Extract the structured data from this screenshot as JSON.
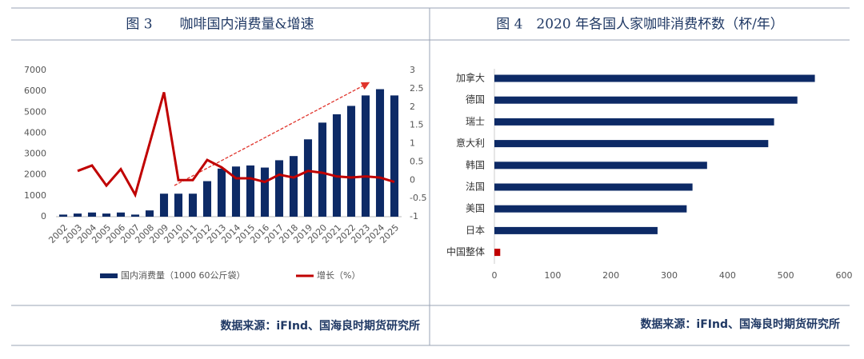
{
  "chart_data": [
    {
      "type": "bar-line",
      "title": "图 3　　咖啡国内消费量&增速",
      "source": "数据来源：iFInd、国海良时期货研究所",
      "categories": [
        "2002",
        "2003",
        "2004",
        "2005",
        "2006",
        "2007",
        "2008",
        "2009",
        "2010",
        "2011",
        "2012",
        "2013",
        "2014",
        "2015",
        "2016",
        "2017",
        "2018",
        "2019",
        "2020",
        "2021",
        "2022",
        "2023",
        "2024",
        "2025"
      ],
      "series": [
        {
          "name": "国内消费量（1000 60公斤袋）",
          "type": "bar",
          "color": "#0d2a66",
          "values": [
            100,
            150,
            200,
            150,
            200,
            100,
            300,
            1100,
            1100,
            1100,
            1700,
            2300,
            2400,
            2450,
            2350,
            2700,
            2900,
            3700,
            4500,
            4900,
            5300,
            5800,
            6100,
            5800
          ]
        },
        {
          "name": "增长（%）",
          "type": "line",
          "axis": "y2",
          "color": "#c00000",
          "values": [
            null,
            0.25,
            0.4,
            -0.15,
            0.3,
            -0.4,
            1.0,
            2.4,
            0,
            0,
            0.55,
            0.35,
            0.05,
            0.05,
            -0.05,
            0.15,
            0.07,
            0.25,
            0.2,
            0.1,
            0.07,
            0.1,
            0.07,
            -0.05
          ]
        }
      ],
      "ylim": [
        0,
        7000
      ],
      "yticks": [
        0,
        1000,
        2000,
        3000,
        4000,
        5000,
        6000,
        7000
      ],
      "y2lim": [
        -1,
        3
      ],
      "y2ticks": [
        -1,
        -0.5,
        0,
        0.5,
        1,
        1.5,
        2,
        2.5,
        3
      ],
      "legend": "bottom"
    },
    {
      "type": "barh",
      "title": "图 4　2020 年各国人家咖啡消费杯数（杯/年）",
      "source": "数据来源：iFInd、国海良时期货研究所",
      "categories": [
        "加拿大",
        "德国",
        "瑞士",
        "意大利",
        "韩国",
        "法国",
        "美国",
        "日本",
        "中国整体"
      ],
      "values": [
        550,
        520,
        480,
        470,
        365,
        340,
        330,
        280,
        10
      ],
      "colors": [
        "#0d2a66",
        "#0d2a66",
        "#0d2a66",
        "#0d2a66",
        "#0d2a66",
        "#0d2a66",
        "#0d2a66",
        "#0d2a66",
        "#c00000"
      ],
      "xlim": [
        0,
        600
      ],
      "xticks": [
        0,
        100,
        200,
        300,
        400,
        500,
        600
      ],
      "grid": false
    }
  ]
}
